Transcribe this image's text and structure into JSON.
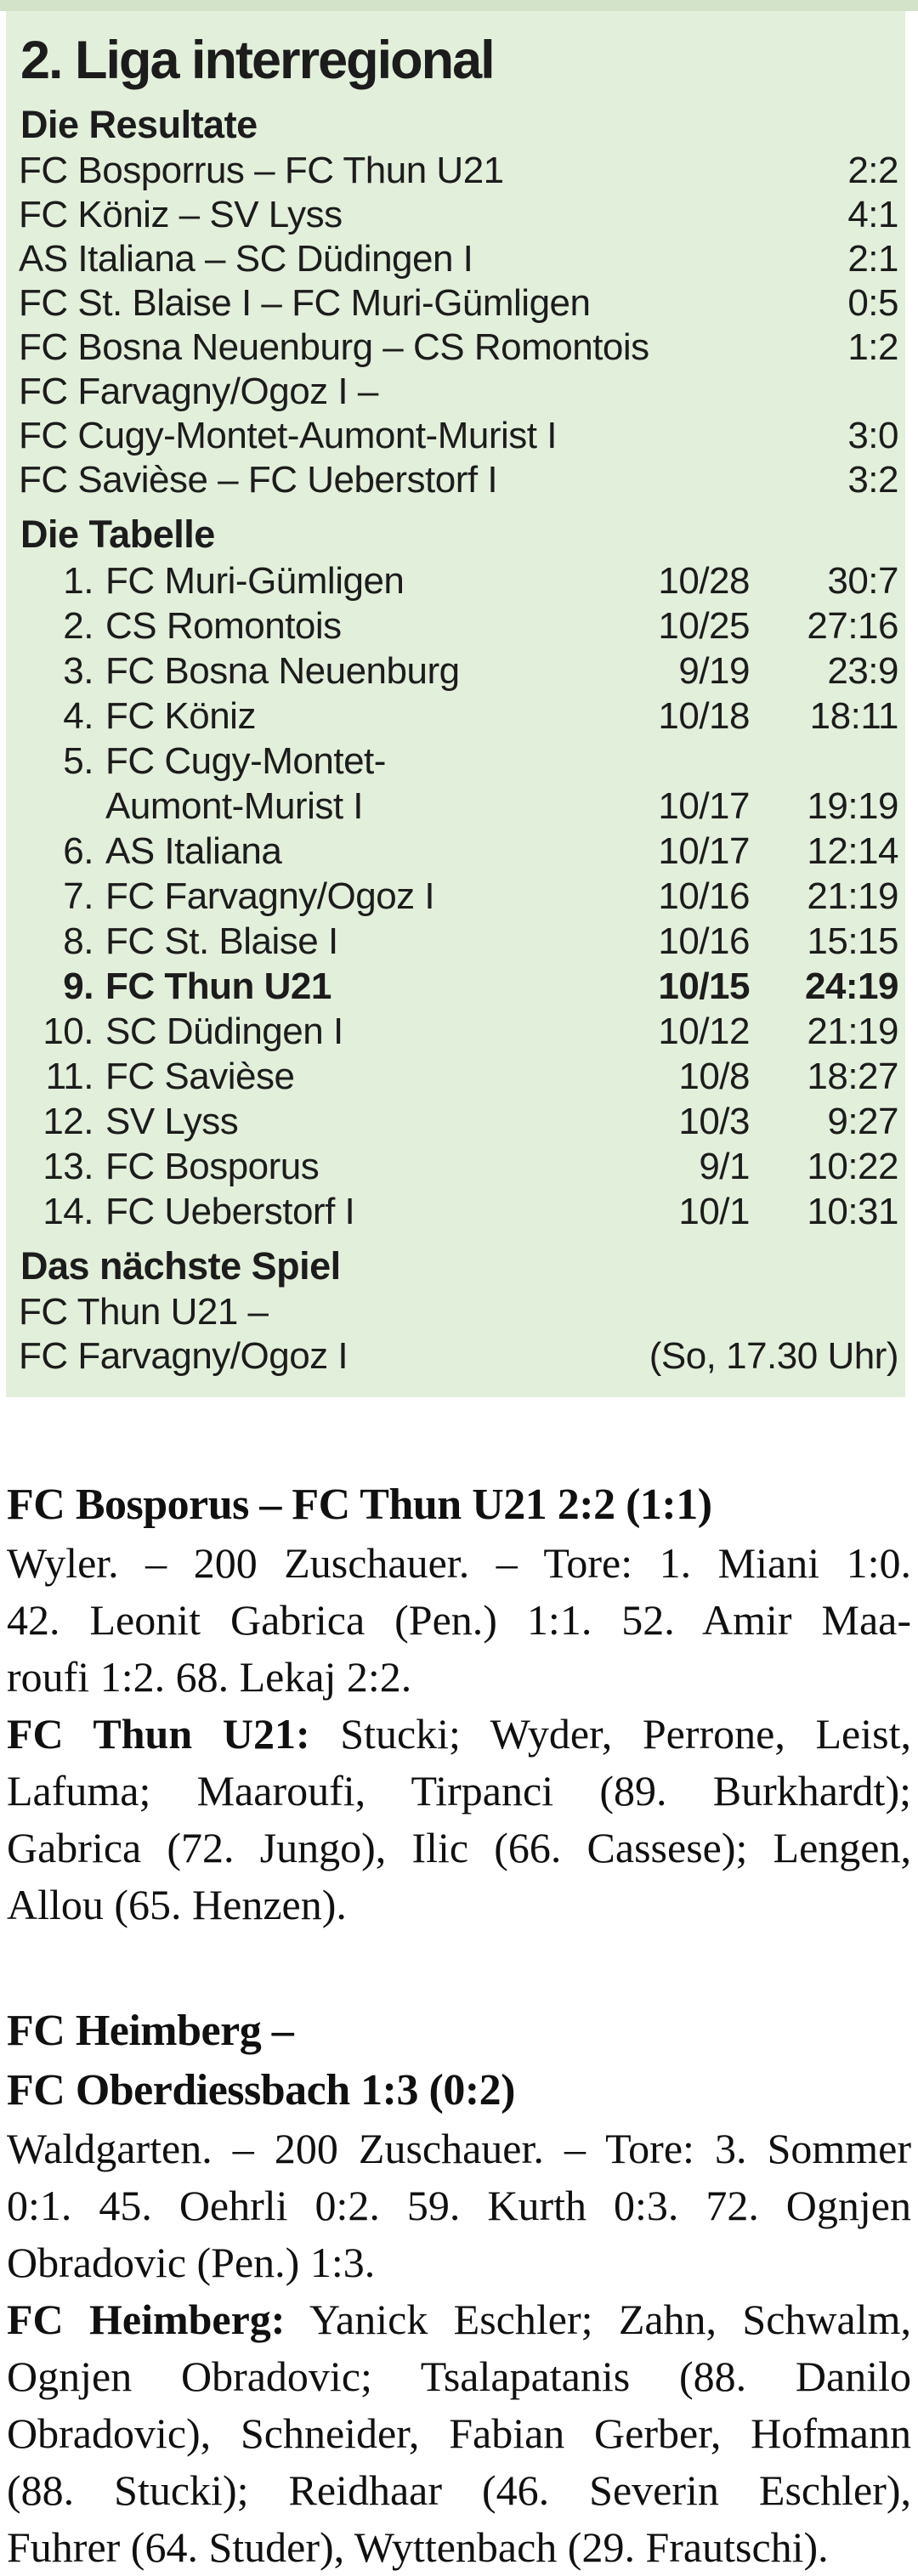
{
  "colors": {
    "box_background": "#e2efda",
    "top_strip": "#d2e3c9",
    "text": "#1b1b1b"
  },
  "league_box": {
    "title": "2. Liga interregional",
    "results": {
      "heading": "Die Resultate",
      "rows": [
        {
          "match": "FC Bosporrus – FC Thun U21",
          "score": "2:2"
        },
        {
          "match": "FC Köniz – SV Lyss",
          "score": "4:1"
        },
        {
          "match": "AS Italiana – SC Düdingen I",
          "score": "2:1"
        },
        {
          "match": "FC St. Blaise I – FC Muri-Gümligen",
          "score": "0:5"
        },
        {
          "match": "FC Bosna Neuenburg – CS Romontois",
          "score": "1:2"
        },
        {
          "match": "FC Farvagny/Ogoz I –",
          "score": ""
        },
        {
          "match": "FC Cugy-Montet-Aumont-Murist I",
          "score": "3:0"
        },
        {
          "match": "FC Savièse – FC Ueberstorf I",
          "score": "3:2"
        }
      ]
    },
    "table": {
      "heading": "Die Tabelle",
      "rows": [
        {
          "rank": "1.",
          "team": "FC Muri-Gümligen",
          "games_points": "10/28",
          "goals": "30:7"
        },
        {
          "rank": "2.",
          "team": "CS Romontois",
          "games_points": "10/25",
          "goals": "27:16"
        },
        {
          "rank": "3.",
          "team": "FC Bosna Neuenburg",
          "games_points": "9/19",
          "goals": "23:9"
        },
        {
          "rank": "4.",
          "team": "FC Köniz",
          "games_points": "10/18",
          "goals": "18:11"
        },
        {
          "rank": "5.",
          "team": "FC Cugy-Montet-",
          "games_points": "",
          "goals": ""
        },
        {
          "rank": "",
          "team": "Aumont-Murist I",
          "games_points": "10/17",
          "goals": "19:19"
        },
        {
          "rank": "6.",
          "team": "AS Italiana",
          "games_points": "10/17",
          "goals": "12:14"
        },
        {
          "rank": "7.",
          "team": "FC Farvagny/Ogoz I",
          "games_points": "10/16",
          "goals": "21:19"
        },
        {
          "rank": "8.",
          "team": "FC St. Blaise I",
          "games_points": "10/16",
          "goals": "15:15"
        },
        {
          "rank": "9.",
          "team": "FC Thun U21",
          "games_points": "10/15",
          "goals": "24:19"
        },
        {
          "rank": "10.",
          "team": "SC Düdingen I",
          "games_points": "10/12",
          "goals": "21:19"
        },
        {
          "rank": "11.",
          "team": "FC Savièse",
          "games_points": "10/8",
          "goals": "18:27"
        },
        {
          "rank": "12.",
          "team": "SV Lyss",
          "games_points": "10/3",
          "goals": "9:27"
        },
        {
          "rank": "13.",
          "team": "FC Bosporus",
          "games_points": "9/1",
          "goals": "10:22"
        },
        {
          "rank": "14.",
          "team": "FC Ueberstorf I",
          "games_points": "10/1",
          "goals": "10:31"
        }
      ]
    },
    "next_game": {
      "heading": "Das nächste Spiel",
      "line1": "FC Thun U21 –",
      "line2": "FC Farvagny/Ogoz I",
      "time": "(So, 17.30 Uhr)"
    }
  },
  "reports": [
    {
      "title_lines": [
        "FC Bosporus – FC Thun U21 2:2 (1:1)"
      ],
      "summary_lines": [
        "Wyler. – 200 Zuschauer. – Tore: 1. Miani 1:0.",
        "42. Leonit Gabrica (Pen.) 1:1. 52. Amir Maa-",
        "roufi 1:2. 68. Lekaj 2:2."
      ],
      "lineup_lead": "FC Thun U21:",
      "lineup_first_rest": "Stucki; Wyder, Perrone, Leist,",
      "lineup_lines": [
        "Lafuma; Maaroufi, Tirpanci (89. Burkhardt);",
        "Gabrica (72. Jungo), Ilic (66. Cassese); Lengen,",
        "Allou (65. Henzen)."
      ]
    },
    {
      "title_lines": [
        "FC Heimberg –",
        "FC Oberdiessbach 1:3 (0:2)"
      ],
      "summary_lines": [
        "Waldgarten. – 200 Zuschauer. – Tore: 3. Sommer",
        "0:1. 45. Oehrli 0:2. 59. Kurth 0:3. 72. Ognjen",
        "Obradovic (Pen.) 1:3."
      ],
      "lineup_lead": "FC Heimberg:",
      "lineup_first_rest": "Yanick Eschler; Zahn, Schwalm,",
      "lineup_lines": [
        "Ognjen Obradovic; Tsalapatanis (88. Danilo",
        "Obradovic), Schneider, Fabian Gerber, Hofmann",
        "(88. Stucki); Reidhaar (46. Severin Eschler),",
        "Fuhrer (64. Studer), Wyttenbach (29. Frautschi)."
      ]
    }
  ]
}
